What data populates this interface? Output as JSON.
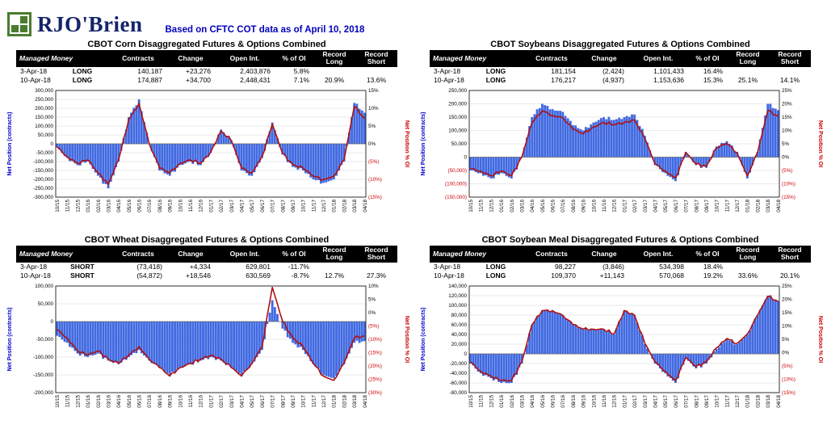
{
  "header": {
    "logo_text": "RJO'Brien",
    "subtitle": "Based on CFTC COT data as of April 10, 2018"
  },
  "colors": {
    "bar": "#4169e1",
    "line": "#b01010",
    "left_axis_title": "#0000cc",
    "right_axis_title": "#cc0000",
    "negative_text": "#cc0000",
    "table_header_bg": "#000000",
    "subtitle_blue": "#0000bb",
    "logo_green": "#4a7c2f",
    "logo_navy": "#14246b"
  },
  "table_headers": {
    "managed_money": "Managed Money",
    "contracts": "Contracts",
    "change": "Change",
    "open_int": "Open Int.",
    "pct_oi": "% of OI",
    "record": "Record",
    "long": "Long",
    "short": "Short"
  },
  "x_labels": [
    "10/15",
    "11/15",
    "12/15",
    "01/16",
    "02/16",
    "03/16",
    "04/16",
    "05/16",
    "06/16",
    "07/16",
    "08/16",
    "09/16",
    "10/16",
    "11/16",
    "12/16",
    "01/17",
    "02/17",
    "03/17",
    "04/17",
    "05/17",
    "06/17",
    "07/17",
    "08/17",
    "09/17",
    "10/17",
    "11/17",
    "12/17",
    "01/18",
    "02/18",
    "03/18",
    "04/18"
  ],
  "chart_data": [
    {
      "key": "corn",
      "title": "CBOT Corn Disaggregated Futures & Options Combined",
      "type": "bar+line",
      "table": {
        "rows": [
          {
            "date": "3-Apr-18",
            "position": "LONG",
            "contracts": "140,187",
            "change": "+23,276",
            "open_int": "2,403,876",
            "pct_oi": "5.8%",
            "record_long": "",
            "record_short": ""
          },
          {
            "date": "10-Apr-18",
            "position": "LONG",
            "contracts": "174,887",
            "change": "+34,700",
            "open_int": "2,448,431",
            "pct_oi": "7.1%",
            "record_long": "20.9%",
            "record_short": "13.6%"
          }
        ]
      },
      "y_left": {
        "title": "Net Position (contracts)",
        "min": -300000,
        "max": 300000,
        "step": 50000,
        "neg_format": "minus"
      },
      "y_right": {
        "title": "Net Position % OI",
        "min": -15,
        "max": 15,
        "step": 5
      },
      "series": [
        {
          "name": "Net Position (contracts)",
          "role": "bar",
          "axis": "left",
          "values": [
            -20000,
            -80000,
            -120000,
            -100000,
            -180000,
            -250000,
            -100000,
            150000,
            250000,
            0,
            -150000,
            -180000,
            -120000,
            -100000,
            -120000,
            -50000,
            80000,
            20000,
            -150000,
            -180000,
            -80000,
            120000,
            -60000,
            -130000,
            -150000,
            -200000,
            -220000,
            -200000,
            -100000,
            230000,
            174887
          ]
        },
        {
          "name": "Net Position % OI",
          "role": "line",
          "axis": "right",
          "values": [
            -0.9,
            -3.6,
            -5.5,
            -4.5,
            -8.2,
            -11.4,
            -4.5,
            6.8,
            11.4,
            0,
            -6.8,
            -8.2,
            -5.5,
            -4.5,
            -5.5,
            -2.3,
            3.6,
            0.9,
            -6.8,
            -8.2,
            -3.6,
            5.5,
            -2.7,
            -5.9,
            -6.8,
            -9.1,
            -10,
            -9.1,
            -4.5,
            10.5,
            7.1
          ]
        }
      ]
    },
    {
      "key": "soybeans",
      "title": "CBOT Soybeans Disaggregated Futures & Options Combined",
      "type": "bar+line",
      "table": {
        "rows": [
          {
            "date": "3-Apr-18",
            "position": "LONG",
            "contracts": "181,154",
            "change": "(2,424)",
            "open_int": "1,101,433",
            "pct_oi": "16.4%",
            "record_long": "",
            "record_short": ""
          },
          {
            "date": "10-Apr-18",
            "position": "LONG",
            "contracts": "176,217",
            "change": "(4,937)",
            "open_int": "1,153,636",
            "pct_oi": "15.3%",
            "record_long": "25.1%",
            "record_short": "14.1%"
          }
        ]
      },
      "y_left": {
        "title": "Net Position (contracts)",
        "min": -150000,
        "max": 250000,
        "step": 50000,
        "neg_format": "paren"
      },
      "y_right": {
        "title": "Net Position % OI",
        "min": -15,
        "max": 25,
        "step": 5
      },
      "series": [
        {
          "name": "Net Position (contracts)",
          "role": "bar",
          "axis": "left",
          "values": [
            -50000,
            -60000,
            -80000,
            -60000,
            -80000,
            0,
            150000,
            200000,
            180000,
            170000,
            120000,
            100000,
            130000,
            150000,
            140000,
            150000,
            160000,
            80000,
            -30000,
            -60000,
            -90000,
            20000,
            -30000,
            -40000,
            40000,
            60000,
            20000,
            -80000,
            20000,
            200000,
            176217
          ]
        },
        {
          "name": "Net Position % OI",
          "role": "line",
          "axis": "right",
          "values": [
            -4.3,
            -5.2,
            -7,
            -5.2,
            -7,
            0,
            13,
            17.4,
            15.7,
            14.8,
            10.4,
            8.7,
            11.3,
            13,
            12.2,
            13,
            13.9,
            7,
            -2.6,
            -5.2,
            -7.8,
            1.7,
            -2.6,
            -3.5,
            3.5,
            5.2,
            1.7,
            -7,
            1.7,
            17.4,
            15.3
          ]
        }
      ]
    },
    {
      "key": "wheat",
      "title": "CBOT Wheat Disaggregated Futures & Options Combined",
      "type": "bar+line",
      "table": {
        "rows": [
          {
            "date": "3-Apr-18",
            "position": "SHORT",
            "contracts": "(73,418)",
            "change": "+4,334",
            "open_int": "629,801",
            "pct_oi": "-11.7%",
            "record_long": "",
            "record_short": ""
          },
          {
            "date": "10-Apr-18",
            "position": "SHORT",
            "contracts": "(54,872)",
            "change": "+18,546",
            "open_int": "630,569",
            "pct_oi": "-8.7%",
            "record_long": "12.7%",
            "record_short": "27.3%"
          }
        ]
      },
      "y_left": {
        "title": "Net Position (contracts)",
        "min": -200000,
        "max": 100000,
        "step": 50000,
        "neg_format": "minus"
      },
      "y_right": {
        "title": "Net Position % OI",
        "min": -30,
        "max": 10,
        "step": 5
      },
      "series": [
        {
          "name": "Net Position (contracts)",
          "role": "bar",
          "axis": "left",
          "values": [
            -40000,
            -60000,
            -90000,
            -100000,
            -90000,
            -110000,
            -120000,
            -100000,
            -80000,
            -110000,
            -130000,
            -150000,
            -130000,
            -120000,
            -110000,
            -100000,
            -110000,
            -130000,
            -150000,
            -120000,
            -80000,
            60000,
            -20000,
            -60000,
            -80000,
            -120000,
            -150000,
            -160000,
            -120000,
            -60000,
            -54872
          ]
        },
        {
          "name": "Net Position % OI",
          "role": "line",
          "axis": "right",
          "values": [
            -6.3,
            -9.5,
            -14.3,
            -15.9,
            -14.3,
            -17.5,
            -19,
            -15.9,
            -12.7,
            -17.5,
            -20.6,
            -23.8,
            -20.6,
            -19,
            -17.5,
            -15.9,
            -17.5,
            -20.6,
            -23.8,
            -19,
            -12.7,
            9.5,
            -3.2,
            -9.5,
            -12.7,
            -19,
            -23.8,
            -25.4,
            -19,
            -9.5,
            -8.7
          ]
        }
      ]
    },
    {
      "key": "soybean-meal",
      "title": "CBOT Soybean Meal Disaggregated Futures & Options Combined",
      "type": "bar+line",
      "table": {
        "rows": [
          {
            "date": "3-Apr-18",
            "position": "LONG",
            "contracts": "98,227",
            "change": "(3,846)",
            "open_int": "534,398",
            "pct_oi": "18.4%",
            "record_long": "",
            "record_short": ""
          },
          {
            "date": "10-Apr-18",
            "position": "LONG",
            "contracts": "109,370",
            "change": "+11,143",
            "open_int": "570,068",
            "pct_oi": "19.2%",
            "record_long": "33.6%",
            "record_short": "20.1%"
          }
        ]
      },
      "y_left": {
        "title": "Net Position (contracts)",
        "min": -80000,
        "max": 140000,
        "step": 20000,
        "neg_format": "minus"
      },
      "y_right": {
        "title": "Net Position % OI",
        "min": -15,
        "max": 25,
        "step": 5
      },
      "series": [
        {
          "name": "Net Position (contracts)",
          "role": "bar",
          "axis": "left",
          "values": [
            -20000,
            -40000,
            -50000,
            -60000,
            -60000,
            -20000,
            60000,
            90000,
            90000,
            80000,
            60000,
            50000,
            50000,
            50000,
            40000,
            90000,
            80000,
            20000,
            -20000,
            -40000,
            -60000,
            -10000,
            -30000,
            -20000,
            10000,
            30000,
            20000,
            40000,
            80000,
            120000,
            109370
          ]
        },
        {
          "name": "Net Position % OI",
          "role": "line",
          "axis": "right",
          "values": [
            -3.5,
            -7,
            -8.8,
            -10.5,
            -10.5,
            -3.5,
            10.5,
            15.8,
            15.8,
            14,
            10.5,
            8.8,
            8.8,
            8.8,
            7,
            15.8,
            14,
            3.5,
            -3.5,
            -7,
            -10.5,
            -1.8,
            -5.3,
            -3.5,
            1.8,
            5.3,
            3.5,
            7,
            14,
            21.1,
            19.2
          ]
        }
      ]
    }
  ]
}
